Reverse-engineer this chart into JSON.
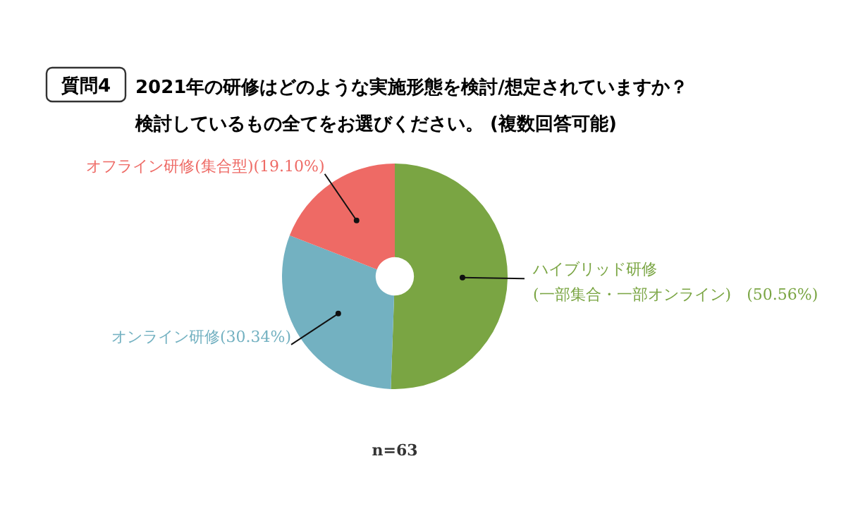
{
  "chart_data": {
    "type": "donut",
    "title": "2021年の研修はどのような実施形態を検討/想定されていますか？",
    "subtitle": "検討しているもの全てをお選びください。 (複数回答可能)",
    "annotations": [
      "質問4",
      "n=63"
    ],
    "categories": [
      "ハイブリッド研修\n(一部集合・一部オンライン)",
      "オンライン研修",
      "オフライン研修(集合型)"
    ],
    "values": [
      50.56,
      30.34,
      19.1
    ],
    "value_labels": [
      "(50.56%)",
      "(30.34%)",
      "(19.10%)"
    ],
    "colors": [
      "#7aa543",
      "#73b1c1",
      "#ee6a65"
    ]
  }
}
